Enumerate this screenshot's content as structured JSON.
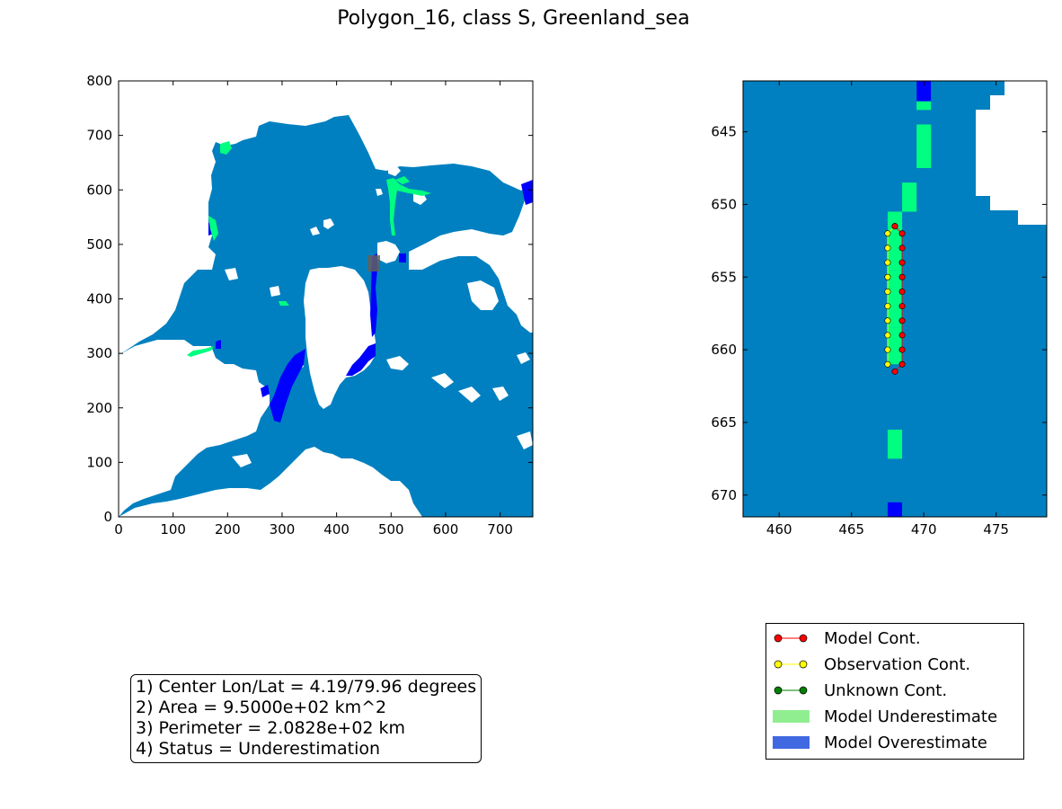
{
  "title": "Polygon_16, class S, Greenland_sea",
  "colors": {
    "ocean": "#0080c0",
    "underestimate": "#00ff80",
    "overestimate": "#0000ff",
    "land": "#ffffff",
    "model_cont": "#ff0000",
    "obs_cont": "#ffff00",
    "unknown_cont": "#008000",
    "legend_under": "#90ee90",
    "legend_over": "#4169e1"
  },
  "chart_data": [
    {
      "type": "heatmap",
      "title": "",
      "xlabel": "",
      "ylabel": "",
      "xlim": [
        0,
        760
      ],
      "ylim": [
        0,
        800
      ],
      "x_ticks": [
        "0",
        "100",
        "200",
        "300",
        "400",
        "500",
        "600",
        "700"
      ],
      "y_ticks": [
        "0",
        "100",
        "200",
        "300",
        "400",
        "500",
        "600",
        "700",
        "800"
      ],
      "x_tick_values": [
        0,
        100,
        200,
        300,
        400,
        500,
        600,
        700
      ],
      "y_tick_values": [
        0,
        100,
        200,
        300,
        400,
        500,
        600,
        700,
        800
      ],
      "highlight_box": {
        "x": [
          460,
          475
        ],
        "y": [
          450,
          470
        ]
      }
    },
    {
      "type": "heatmap",
      "title": "",
      "xlabel": "",
      "ylabel": "",
      "xlim": [
        457.5,
        478.5
      ],
      "ylim": [
        671.5,
        641.5
      ],
      "x_ticks": [
        "460",
        "465",
        "470",
        "475"
      ],
      "y_ticks": [
        "645",
        "650",
        "655",
        "660",
        "665",
        "670"
      ],
      "x_tick_values": [
        460,
        465,
        470,
        475
      ],
      "y_tick_values": [
        645,
        650,
        655,
        660,
        665,
        670
      ],
      "underestimate_cells": [
        [
          470,
          642
        ],
        [
          470,
          645
        ],
        [
          469,
          649
        ],
        [
          468,
          651
        ],
        [
          468,
          655
        ],
        [
          468,
          659
        ],
        [
          468,
          666
        ]
      ],
      "overestimate_cells": [
        [
          470,
          641.5
        ],
        [
          468,
          671
        ]
      ],
      "model_contour": [
        [
          468,
          651.5
        ],
        [
          468.5,
          652
        ],
        [
          468.5,
          653
        ],
        [
          468.5,
          654
        ],
        [
          468.5,
          655
        ],
        [
          468.5,
          656
        ],
        [
          468.5,
          657
        ],
        [
          468.5,
          658
        ],
        [
          468.5,
          659
        ],
        [
          468.5,
          660
        ],
        [
          468.5,
          661
        ],
        [
          468,
          661.5
        ]
      ],
      "observation_contour": [
        [
          468,
          651.5
        ],
        [
          467.5,
          652
        ],
        [
          467.5,
          653
        ],
        [
          467.5,
          654
        ],
        [
          467.5,
          655
        ],
        [
          467.5,
          656
        ],
        [
          467.5,
          657
        ],
        [
          467.5,
          658
        ],
        [
          467.5,
          659
        ],
        [
          467.5,
          660
        ],
        [
          467.5,
          661
        ]
      ]
    }
  ],
  "info": {
    "line1": "1) Center Lon/Lat = 4.19/79.96 degrees",
    "line2": "2) Area = 9.5000e+02 km^2",
    "line3": "3) Perimeter = 2.0828e+02 km",
    "line4": "4) Status = Underestimation"
  },
  "legend": {
    "model_cont": "Model Cont.",
    "obs_cont": "Observation Cont.",
    "unknown_cont": "Unknown Cont.",
    "model_under": "Model Underestimate",
    "model_over": "Model Overestimate"
  }
}
